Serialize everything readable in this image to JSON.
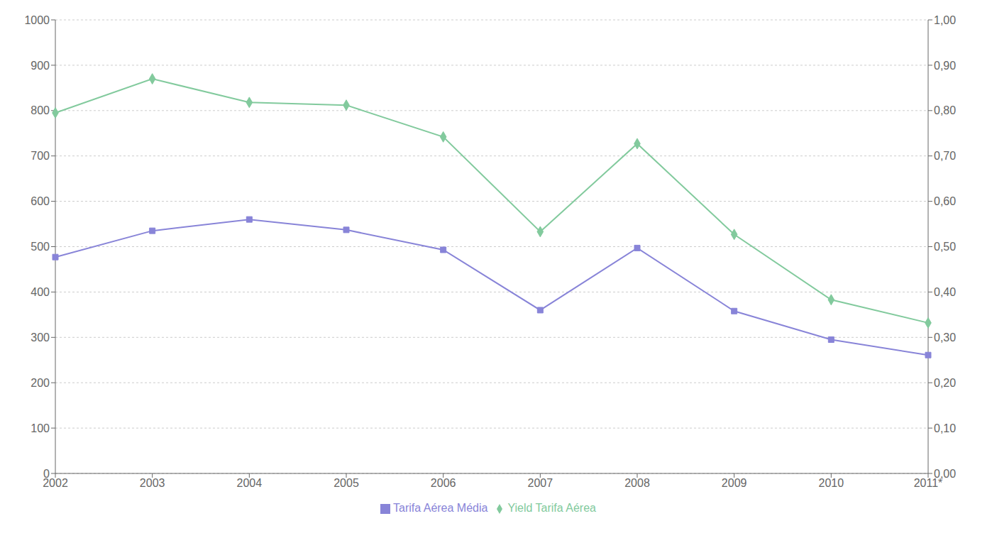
{
  "chart_data": {
    "type": "line",
    "categories": [
      "2002",
      "2003",
      "2004",
      "2005",
      "2006",
      "2007",
      "2008",
      "2009",
      "2010",
      "2011*"
    ],
    "series": [
      {
        "name": "Tarifa Aérea Média",
        "color": "#8884d8",
        "marker": "square",
        "values": [
          477,
          535,
          560,
          537,
          493,
          360,
          497,
          358,
          295,
          261
        ]
      },
      {
        "name": "Yield Tarifa Aérea",
        "color": "#82ca9d",
        "marker": "diamond",
        "axis": "y2",
        "values": [
          0.795,
          0.87,
          0.818,
          0.812,
          0.742,
          0.533,
          0.727,
          0.527,
          0.383,
          0.332
        ]
      }
    ],
    "ylim": [
      0,
      1000
    ],
    "yticks": [
      0,
      100,
      200,
      300,
      400,
      500,
      600,
      700,
      800,
      900,
      1000
    ],
    "y2lim": [
      0.0,
      1.0
    ],
    "y2ticks": [
      {
        "value": 0.0,
        "label": "0,00"
      },
      {
        "value": 0.1,
        "label": "0,10"
      },
      {
        "value": 0.2,
        "label": "0,20"
      },
      {
        "value": 0.3,
        "label": "0,30"
      },
      {
        "value": 0.4,
        "label": "0,40"
      },
      {
        "value": 0.5,
        "label": "0,50"
      },
      {
        "value": 0.6,
        "label": "0,60"
      },
      {
        "value": 0.7,
        "label": "0,70"
      },
      {
        "value": 0.8,
        "label": "0,80"
      },
      {
        "value": 0.9,
        "label": "0,90"
      },
      {
        "value": 1.0,
        "label": "1,00"
      }
    ],
    "grid": true,
    "legend": "bottom"
  }
}
